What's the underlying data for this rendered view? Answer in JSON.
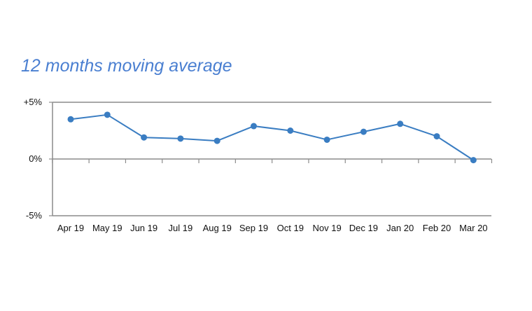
{
  "chart_data": {
    "type": "line",
    "title": "12 months moving average",
    "categories": [
      "Apr 19",
      "May 19",
      "Jun 19",
      "Jul 19",
      "Aug 19",
      "Sep 19",
      "Oct 19",
      "Nov 19",
      "Dec 19",
      "Jan 20",
      "Feb 20",
      "Mar 20"
    ],
    "series": [
      {
        "values": [
          3.5,
          3.9,
          1.9,
          1.8,
          1.6,
          2.9,
          2.5,
          1.7,
          2.4,
          3.1,
          2.0,
          -0.1
        ]
      }
    ],
    "y_ticks": [
      {
        "value": 5,
        "label": "+5%"
      },
      {
        "value": 0,
        "label": "0%"
      },
      {
        "value": -5,
        "label": "-5%"
      }
    ],
    "ylim": [
      -5,
      5
    ],
    "xlabel": "",
    "ylabel": "",
    "grid": "horizontal lines at tick values",
    "legend": "none",
    "colors": {
      "line": "#3a7dc2",
      "marker": "#3a7dc2",
      "title": "#4a7fd1",
      "axis": "#8c8c8c"
    }
  }
}
